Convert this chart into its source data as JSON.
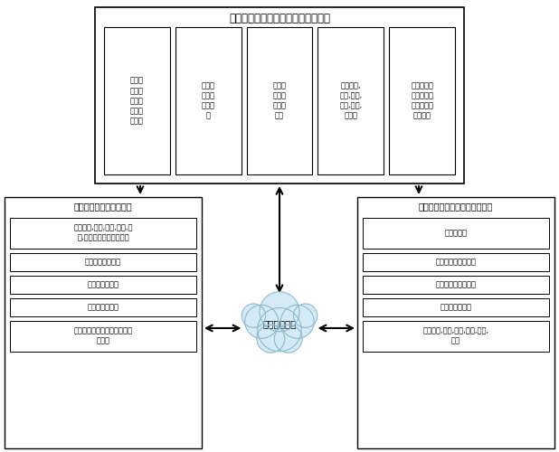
{
  "title_top": "区域大医院或三甲综合医院远程终端",
  "top_sub_boxes": [
    "区域大\n医院或\n三甲医\n院医患\n手机端",
    "大型无\n线视屏\n会议工\n作",
    "区域医\n疗中心\n会诊工\n作站",
    "远程体重,\n体动,心电,\n血氧,血压,\n血糖等",
    "内外网电脑\n医疗数据传\n输、文件管\n理工作站"
  ],
  "left_title": "二级或三级医院本地终端",
  "left_boxes": [
    "远程体重,体动,心电,血氧,血\n压,血糖等远程终端工作站",
    "医患手机端工作站",
    "医院会诊工作站",
    "无线视屏接受端",
    "内外网电脑医疗数据传输、文\n件管理"
  ],
  "right_title": "一级医院或家庭、个人本地终端",
  "right_boxes": [
    "医患手机端",
    "医院、家庭会诊单元",
    "外网医疗管理工作端",
    "无线视屏接受端",
    "远程体重,体动,心电,血氧,血压,\n血糖"
  ],
  "cloud_label": "健康云服务器",
  "bg_color": "#ffffff"
}
